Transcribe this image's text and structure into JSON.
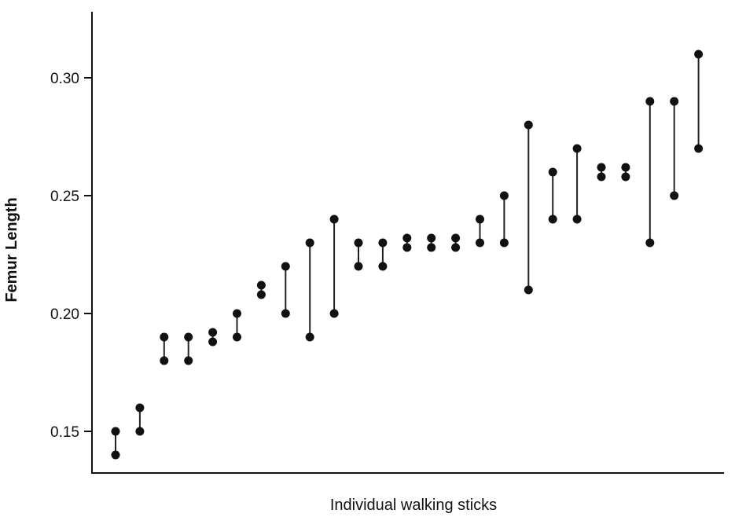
{
  "chart_data": {
    "type": "scatter",
    "subtype": "paired-measurements (dumbbell)",
    "xlabel": "Individual walking sticks",
    "ylabel": "Femur Length",
    "ylim": [
      0.13,
      0.327
    ],
    "yticks": [
      0.15,
      0.2,
      0.25,
      0.3
    ],
    "ytick_labels": [
      "0.15",
      "0.20",
      "0.25",
      "0.30"
    ],
    "grid": false,
    "legend": "none",
    "marker_color": "#111111",
    "line_color": "#222222",
    "pairs": [
      {
        "individual": 1,
        "values": [
          0.15,
          0.14
        ]
      },
      {
        "individual": 2,
        "values": [
          0.16,
          0.15
        ]
      },
      {
        "individual": 3,
        "values": [
          0.19,
          0.18
        ]
      },
      {
        "individual": 4,
        "values": [
          0.19,
          0.18
        ]
      },
      {
        "individual": 5,
        "values": [
          0.192,
          0.188
        ]
      },
      {
        "individual": 6,
        "values": [
          0.2,
          0.19
        ]
      },
      {
        "individual": 7,
        "values": [
          0.212,
          0.208
        ]
      },
      {
        "individual": 8,
        "values": [
          0.22,
          0.2
        ]
      },
      {
        "individual": 9,
        "values": [
          0.23,
          0.19
        ]
      },
      {
        "individual": 10,
        "values": [
          0.24,
          0.2
        ]
      },
      {
        "individual": 11,
        "values": [
          0.23,
          0.22
        ]
      },
      {
        "individual": 12,
        "values": [
          0.23,
          0.22
        ]
      },
      {
        "individual": 13,
        "values": [
          0.232,
          0.228
        ]
      },
      {
        "individual": 14,
        "values": [
          0.232,
          0.228
        ]
      },
      {
        "individual": 15,
        "values": [
          0.232,
          0.228
        ]
      },
      {
        "individual": 16,
        "values": [
          0.24,
          0.23
        ]
      },
      {
        "individual": 17,
        "values": [
          0.25,
          0.23
        ]
      },
      {
        "individual": 18,
        "values": [
          0.28,
          0.21
        ]
      },
      {
        "individual": 19,
        "values": [
          0.26,
          0.24
        ]
      },
      {
        "individual": 20,
        "values": [
          0.27,
          0.24
        ]
      },
      {
        "individual": 21,
        "values": [
          0.262,
          0.258
        ]
      },
      {
        "individual": 22,
        "values": [
          0.262,
          0.258
        ]
      },
      {
        "individual": 23,
        "values": [
          0.29,
          0.23
        ]
      },
      {
        "individual": 24,
        "values": [
          0.29,
          0.25
        ]
      },
      {
        "individual": 25,
        "values": [
          0.31,
          0.27
        ]
      }
    ]
  }
}
